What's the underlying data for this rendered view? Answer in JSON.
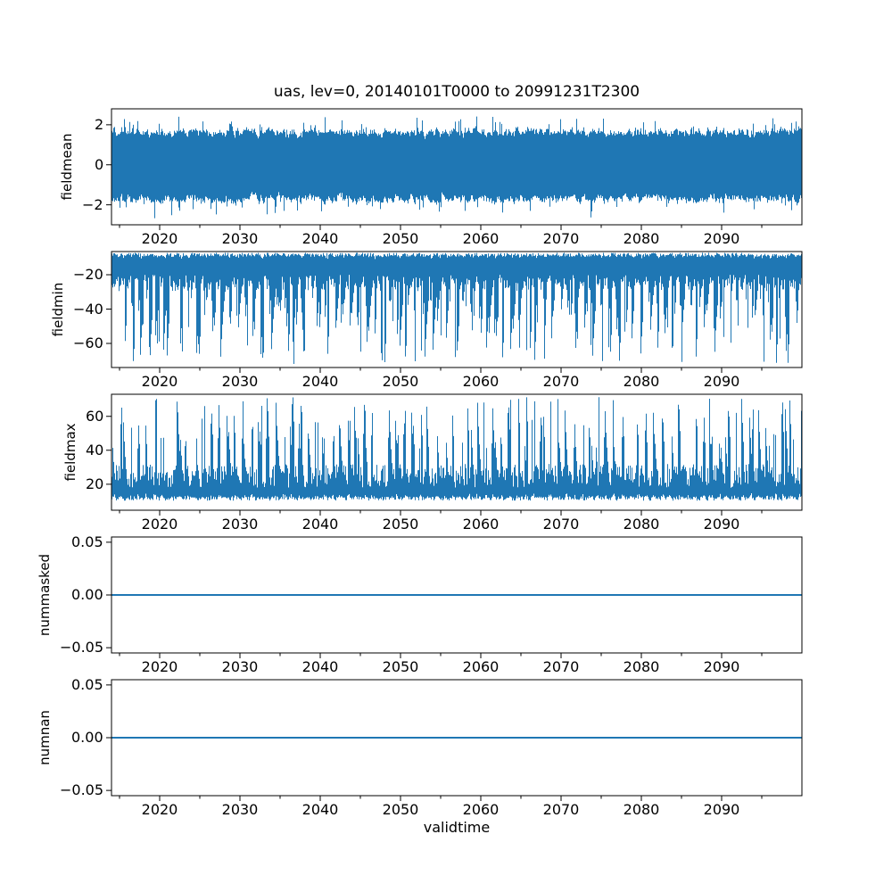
{
  "chart_data": {
    "type": "line",
    "title": "uas, lev=0, 20140101T0000 to 20991231T2300",
    "xlabel": "validtime",
    "line_color": "#1f77b4",
    "axes_color": "#000000",
    "background": "#ffffff",
    "legend": "none",
    "grid": false,
    "x_range": [
      2014,
      2100
    ],
    "x_major_ticks": [
      2020,
      2030,
      2040,
      2050,
      2060,
      2070,
      2080,
      2090
    ],
    "x_tick_labels": [
      "2020",
      "2030",
      "2040",
      "2050",
      "2060",
      "2070",
      "2080",
      "2090"
    ],
    "x_minor_ticks": [
      2015,
      2025,
      2035,
      2045,
      2055,
      2065,
      2075,
      2085,
      2095
    ],
    "subplots": [
      {
        "ylabel": "fieldmean",
        "ylim": [
          -3.0,
          2.8
        ],
        "ytick_values": [
          2,
          0,
          -2
        ],
        "ytick_labels": [
          "2",
          "0",
          "−2"
        ],
        "observed_envelope": {
          "typical_band": [
            -2.1,
            2.0
          ],
          "extremes": [
            -3.0,
            2.75
          ],
          "mean_level": 0
        },
        "series": {
          "kind": "noise_band",
          "seed": 12345,
          "hi": {
            "base": 1.15,
            "var": 0.95,
            "spike_p": 0.05,
            "spike": 0.7,
            "cap": 2.78
          },
          "lo": {
            "base": 1.2,
            "var": 1.0,
            "spike_p": 0.05,
            "spike": 0.75,
            "cap": 2.97
          }
        }
      },
      {
        "ylabel": "fieldmin",
        "ylim": [
          -74,
          -6.5
        ],
        "ytick_values": [
          -20,
          -40,
          -60
        ],
        "ytick_labels": [
          "−20",
          "−40",
          "−60"
        ],
        "observed_envelope": {
          "upper_edge": [
            -11,
            -7
          ],
          "typical_band_bottom": [
            -30,
            -20
          ],
          "spike_depths": [
            -72,
            -35
          ],
          "spike_period_years": 1
        },
        "series": {
          "kind": "spike_down",
          "seed": 777,
          "edge": {
            "base": 7.2,
            "var": 2.3
          },
          "scallop": 1.6,
          "body": {
            "base": 20,
            "var": 9.5
          },
          "period": 9.05,
          "cluster_gate": -0.2,
          "spike_p": 0.62,
          "spike": {
            "min": 33,
            "var": 39,
            "pow": 1.35
          },
          "hold_p": 0.55,
          "hold_decay": 0.85,
          "cap": 72.5
        }
      },
      {
        "ylabel": "fieldmax",
        "ylim": [
          4.7,
          73
        ],
        "ytick_values": [
          60,
          40,
          20
        ],
        "ytick_labels": [
          "60",
          "40",
          "20"
        ],
        "observed_envelope": {
          "lower_edge": [
            10,
            15
          ],
          "typical_band_top": [
            28,
            35
          ],
          "spike_heights": [
            45,
            72
          ],
          "spike_period_years": 1
        },
        "series": {
          "kind": "spike_up",
          "seed": 999,
          "edge": {
            "base": 10.3,
            "var": 2.6
          },
          "scallop": 2.4,
          "body": {
            "base": 18,
            "var": 14
          },
          "period": 9.05,
          "cluster_gate": -0.05,
          "spike_p": 0.5,
          "spike": {
            "min": 41,
            "var": 31,
            "pow": 1.3
          },
          "hold_p": 0.5,
          "hold_decay": 0.8,
          "cap": 72.5
        }
      },
      {
        "ylabel": "nummasked",
        "ylim": [
          -0.055,
          0.055
        ],
        "ytick_values": [
          0.05,
          0,
          -0.05
        ],
        "ytick_labels": [
          "0.05",
          "0.00",
          "−0.05"
        ],
        "observed_envelope": {
          "constant_value": 0
        },
        "series": {
          "kind": "constant",
          "value": 0,
          "linewidth": 2
        }
      },
      {
        "ylabel": "numnan",
        "ylim": [
          -0.055,
          0.055
        ],
        "ytick_values": [
          0.05,
          0,
          -0.05
        ],
        "ytick_labels": [
          "0.05",
          "0.00",
          "−0.05"
        ],
        "observed_envelope": {
          "constant_value": 0
        },
        "series": {
          "kind": "constant",
          "value": 0,
          "linewidth": 2
        }
      }
    ]
  }
}
